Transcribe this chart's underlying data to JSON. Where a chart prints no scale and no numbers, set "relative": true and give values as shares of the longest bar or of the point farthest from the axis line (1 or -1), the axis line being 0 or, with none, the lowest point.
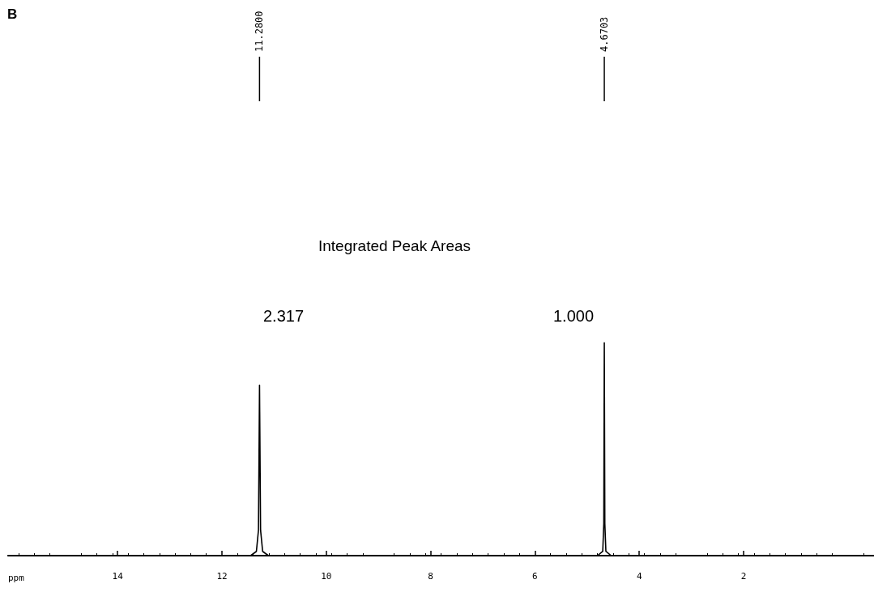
{
  "chart_data": {
    "type": "line",
    "title": "B",
    "xlabel": "ppm",
    "relative": true,
    "color": "#000000",
    "marker": "none",
    "line_style": "solid",
    "xlim": [
      16.1,
      -0.5
    ],
    "xticks": [
      14,
      12,
      10,
      8,
      6,
      4,
      2
    ],
    "x": [
      16.1,
      11.45,
      11.34,
      11.3,
      11.28,
      11.26,
      11.22,
      11.11,
      4.8,
      4.7,
      4.68,
      4.6703,
      4.66,
      4.64,
      4.54,
      -0.5
    ],
    "values": [
      0,
      0,
      0.02,
      0.12,
      0.8,
      0.12,
      0.02,
      0,
      0,
      0.02,
      0.15,
      1,
      0.15,
      0.02,
      0,
      0
    ],
    "annotations": [
      {
        "text": "11.2800",
        "x": 11.28
      },
      {
        "text": "4.6703",
        "x": 4.6703
      },
      "Integrated Peak Areas",
      "2.317",
      "1.000"
    ]
  }
}
